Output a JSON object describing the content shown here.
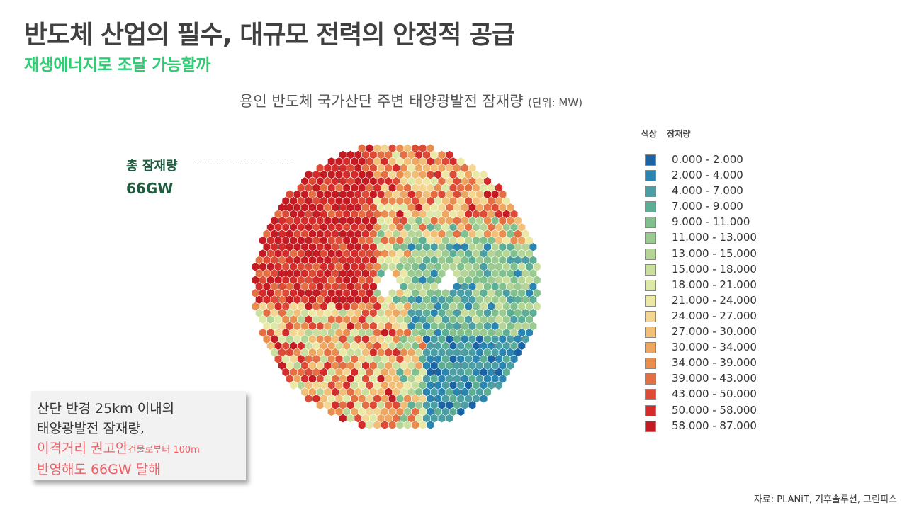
{
  "header": {
    "title": "반도체 산업의 필수, 대규모 전력의 안정적 공급",
    "subtitle": "재생에너지로 조달 가능할까"
  },
  "map": {
    "title": "용인 반도체 국가산단 주변 태양광발전 잠재량",
    "unit": "(단위: MW)",
    "total_label": "총 잠재량",
    "total_value": "66GW"
  },
  "legend": {
    "header_color": "색상",
    "header_value": "잠재량",
    "items": [
      {
        "range": "0.000 - 2.000",
        "color": "#1a64a6"
      },
      {
        "range": "2.000 - 4.000",
        "color": "#2a86b0"
      },
      {
        "range": "4.000 - 7.000",
        "color": "#4a9ea4"
      },
      {
        "range": "7.000 - 9.000",
        "color": "#5cae95"
      },
      {
        "range": "9.000 - 11.000",
        "color": "#7fc08d"
      },
      {
        "range": "11.000 - 13.000",
        "color": "#9ccb91"
      },
      {
        "range": "13.000 - 15.000",
        "color": "#b4d596"
      },
      {
        "range": "15.000 - 18.000",
        "color": "#cadf9e"
      },
      {
        "range": "18.000 - 21.000",
        "color": "#dde9a6"
      },
      {
        "range": "21.000 - 24.000",
        "color": "#ece8a6"
      },
      {
        "range": "24.000 - 27.000",
        "color": "#f3d692"
      },
      {
        "range": "27.000 - 30.000",
        "color": "#f2bf78"
      },
      {
        "range": "30.000 - 34.000",
        "color": "#eea760"
      },
      {
        "range": "34.000 - 39.000",
        "color": "#ea8e4f"
      },
      {
        "range": "39.000 - 43.000",
        "color": "#e46f43"
      },
      {
        "range": "43.000 - 50.000",
        "color": "#dd4b37"
      },
      {
        "range": "50.000 - 58.000",
        "color": "#d42c2a"
      },
      {
        "range": "58.000 - 87.000",
        "color": "#c41a22"
      }
    ]
  },
  "callout": {
    "line1": "산단 반경 25km 이내의",
    "line2": "태양광발전 잠재량,",
    "line3_main": "이격거리 권고안",
    "line3_small": "건물로부터 100m",
    "line4": "반영해도 66GW 달해"
  },
  "source": "자료: PLANiT, 기후솔루션, 그린피스"
}
